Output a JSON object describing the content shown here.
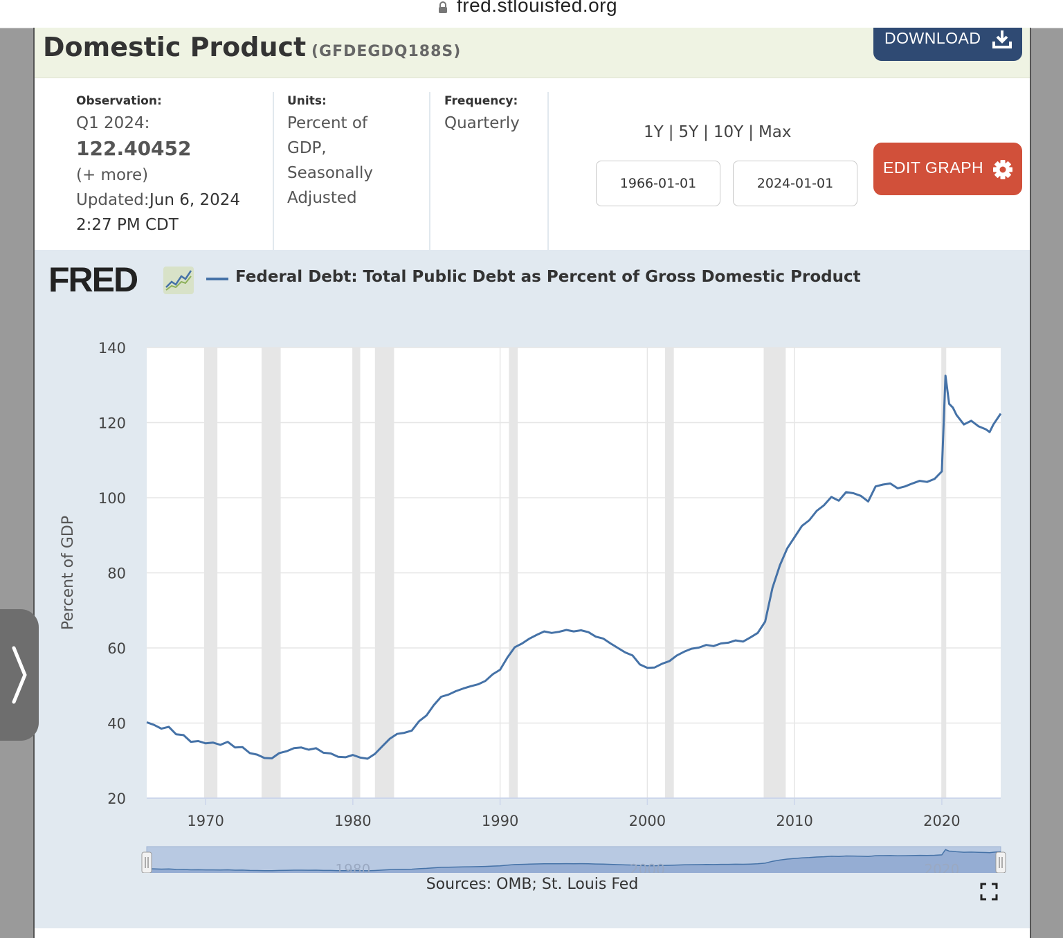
{
  "browser": {
    "url": "fred.stlouisfed.org"
  },
  "header": {
    "title": "Domestic Product",
    "series_code": "(GFDEGDQ188S)",
    "download_label": "DOWNLOAD"
  },
  "meta": {
    "observation_label": "Observation:",
    "observation_period": "Q1 2024:",
    "observation_value": "122.40452",
    "more_link": "(+ more)",
    "updated_label": "Updated:",
    "updated_date": "Jun 6, 2024",
    "updated_time": "2:27 PM CDT",
    "units_label": "Units:",
    "units_lines": [
      "Percent of",
      "GDP,",
      "Seasonally",
      "Adjusted"
    ],
    "frequency_label": "Frequency:",
    "frequency_value": "Quarterly"
  },
  "controls": {
    "ranges": [
      "1Y",
      "5Y",
      "10Y",
      "Max"
    ],
    "start_date": "1966-01-01",
    "end_date": "2024-01-01",
    "edit_graph_label": "EDIT GRAPH"
  },
  "chart_data": {
    "type": "line",
    "title": "Federal Debt: Total Public Debt as Percent of Gross Domestic Product",
    "ylabel": "Percent of GDP",
    "xlabel": "",
    "ylim": [
      20,
      140
    ],
    "xlim": [
      1966.0,
      2024.0
    ],
    "yticks": [
      20,
      40,
      60,
      80,
      100,
      120,
      140
    ],
    "xticks": [
      1970,
      1980,
      1990,
      2000,
      2010,
      2020
    ],
    "navigator_ticks": [
      1980,
      2000,
      2020
    ],
    "grid": true,
    "line_color": "#4572a7",
    "recessions": [
      [
        1969.9,
        1970.8
      ],
      [
        1973.8,
        1975.1
      ],
      [
        1980.0,
        1980.5
      ],
      [
        1981.5,
        1982.8
      ],
      [
        1990.6,
        1991.2
      ],
      [
        2001.2,
        2001.8
      ],
      [
        2007.9,
        2009.4
      ],
      [
        2020.0,
        2020.3
      ]
    ],
    "series": [
      {
        "name": "Federal Debt: Total Public Debt as Percent of Gross Domestic Product",
        "x": [
          1966.0,
          1966.5,
          1967.0,
          1967.5,
          1968.0,
          1968.5,
          1969.0,
          1969.5,
          1970.0,
          1970.5,
          1971.0,
          1971.5,
          1972.0,
          1972.5,
          1973.0,
          1973.5,
          1974.0,
          1974.5,
          1975.0,
          1975.5,
          1976.0,
          1976.5,
          1977.0,
          1977.5,
          1978.0,
          1978.5,
          1979.0,
          1979.5,
          1980.0,
          1980.5,
          1981.0,
          1981.5,
          1982.0,
          1982.5,
          1983.0,
          1983.5,
          1984.0,
          1984.5,
          1985.0,
          1985.5,
          1986.0,
          1986.5,
          1987.0,
          1987.5,
          1988.0,
          1988.5,
          1989.0,
          1989.5,
          1990.0,
          1990.5,
          1991.0,
          1991.5,
          1992.0,
          1992.5,
          1993.0,
          1993.5,
          1994.0,
          1994.5,
          1995.0,
          1995.5,
          1996.0,
          1996.5,
          1997.0,
          1997.5,
          1998.0,
          1998.5,
          1999.0,
          1999.5,
          2000.0,
          2000.5,
          2001.0,
          2001.5,
          2002.0,
          2002.5,
          2003.0,
          2003.5,
          2004.0,
          2004.5,
          2005.0,
          2005.5,
          2006.0,
          2006.5,
          2007.0,
          2007.5,
          2008.0,
          2008.5,
          2009.0,
          2009.5,
          2010.0,
          2010.5,
          2011.0,
          2011.5,
          2012.0,
          2012.5,
          2013.0,
          2013.5,
          2014.0,
          2014.5,
          2015.0,
          2015.5,
          2016.0,
          2016.5,
          2017.0,
          2017.5,
          2018.0,
          2018.5,
          2019.0,
          2019.5,
          2020.0,
          2020.25,
          2020.5,
          2020.75,
          2021.0,
          2021.5,
          2022.0,
          2022.5,
          2023.0,
          2023.25,
          2023.5,
          2024.0
        ],
        "y": [
          40.2,
          39.5,
          38.5,
          39.0,
          37.0,
          36.8,
          35.0,
          35.2,
          34.6,
          34.8,
          34.2,
          35.0,
          33.5,
          33.6,
          32.0,
          31.6,
          30.7,
          30.6,
          32.0,
          32.5,
          33.3,
          33.5,
          32.9,
          33.3,
          32.1,
          31.9,
          31.0,
          30.9,
          31.5,
          30.8,
          30.5,
          31.8,
          33.8,
          35.8,
          37.1,
          37.4,
          38.0,
          40.5,
          42.0,
          44.8,
          47.0,
          47.6,
          48.5,
          49.2,
          49.8,
          50.3,
          51.2,
          53.0,
          54.2,
          57.5,
          60.2,
          61.2,
          62.5,
          63.5,
          64.4,
          64.0,
          64.3,
          64.8,
          64.4,
          64.7,
          64.2,
          63.0,
          62.5,
          61.2,
          60.0,
          58.8,
          58.0,
          55.6,
          54.7,
          54.8,
          55.8,
          56.5,
          58.0,
          59.0,
          59.8,
          60.1,
          60.8,
          60.5,
          61.2,
          61.4,
          62.0,
          61.7,
          62.8,
          64.0,
          67.0,
          76.0,
          82.0,
          86.5,
          89.5,
          92.5,
          94.0,
          96.5,
          98.0,
          100.2,
          99.2,
          101.5,
          101.2,
          100.5,
          99.0,
          103.0,
          103.5,
          103.8,
          102.5,
          103.0,
          103.8,
          104.5,
          104.2,
          105.0,
          107.0,
          132.5,
          125.0,
          124.0,
          122.0,
          119.5,
          120.5,
          119.0,
          118.2,
          117.5,
          119.5,
          122.4
        ]
      }
    ]
  },
  "footer": {
    "sources": "Sources: OMB; St. Louis Fed"
  }
}
